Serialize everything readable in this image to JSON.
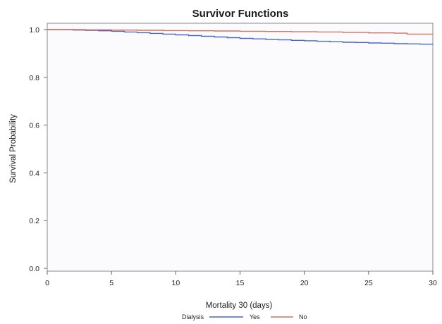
{
  "chart_data": {
    "type": "line",
    "title": "Survivor Functions",
    "xlabel": "Mortality 30 (days)",
    "ylabel": "Survival Probability",
    "xlim": [
      0,
      30
    ],
    "ylim": [
      0,
      1
    ],
    "x_ticks": [
      "0",
      "5",
      "10",
      "15",
      "20",
      "25",
      "30"
    ],
    "y_ticks": [
      "0.0",
      "0.2",
      "0.4",
      "0.6",
      "0.8",
      "1.0"
    ],
    "grid": false,
    "legend": {
      "title": "Dialysis",
      "placement": "bottom-center"
    },
    "series": [
      {
        "name": "Yes",
        "color": "#4a66c8",
        "step": true,
        "x": [
          0,
          2,
          3,
          4,
          5,
          6,
          7,
          8,
          9,
          10,
          11,
          12,
          13,
          14,
          15,
          16,
          17,
          18,
          19,
          20,
          21,
          22,
          23,
          24,
          25,
          26,
          27,
          28,
          29,
          30
        ],
        "y": [
          1.0,
          0.998,
          0.997,
          0.995,
          0.993,
          0.99,
          0.987,
          0.984,
          0.981,
          0.978,
          0.975,
          0.972,
          0.969,
          0.966,
          0.963,
          0.961,
          0.959,
          0.957,
          0.955,
          0.953,
          0.951,
          0.949,
          0.947,
          0.946,
          0.944,
          0.943,
          0.941,
          0.94,
          0.939,
          0.938
        ]
      },
      {
        "name": "No",
        "color": "#d8725e",
        "step": true,
        "x": [
          0,
          3,
          5,
          7,
          9,
          11,
          13,
          15,
          17,
          19,
          21,
          23,
          25,
          27,
          28,
          30
        ],
        "y": [
          1.0,
          0.999,
          0.998,
          0.997,
          0.996,
          0.995,
          0.994,
          0.993,
          0.992,
          0.991,
          0.99,
          0.988,
          0.986,
          0.985,
          0.981,
          0.98
        ]
      }
    ]
  }
}
